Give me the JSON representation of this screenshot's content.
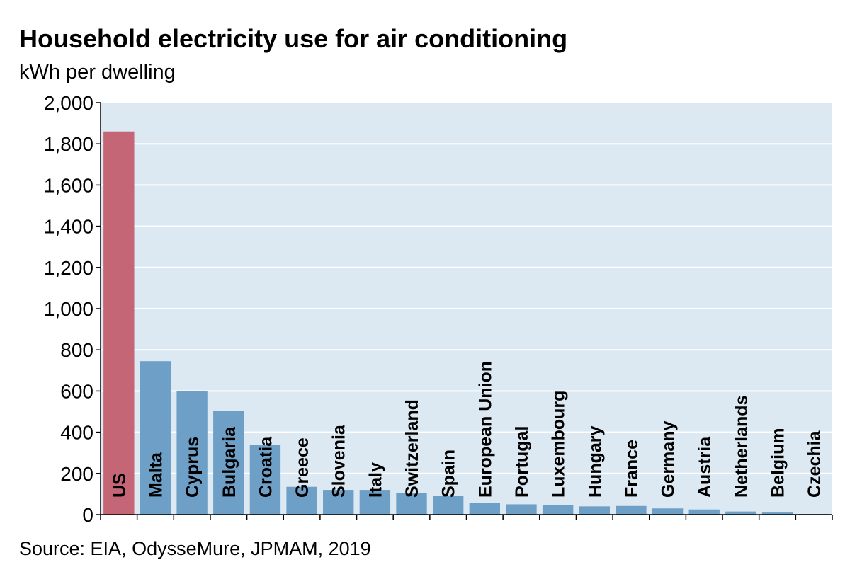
{
  "header": {
    "title": "Household electricity use for air conditioning",
    "subtitle": "kWh per dwelling"
  },
  "footer": {
    "source": "Source: EIA, OdysseMure, JPMAM, 2019"
  },
  "colors": {
    "plot_background": "#dce9f2",
    "gridline": "#ffffff",
    "us_bar": "#c46676",
    "other_bar": "#6d9fc7",
    "axis": "#000000"
  },
  "chart_data": {
    "type": "bar",
    "title": "Household electricity use for air conditioning",
    "ylabel": "kWh per dwelling",
    "xlabel": "",
    "ylim": [
      0,
      2000
    ],
    "yticks": [
      0,
      200,
      400,
      600,
      800,
      1000,
      1200,
      1400,
      1600,
      1800,
      2000
    ],
    "ytick_labels": [
      "0",
      "200",
      "400",
      "600",
      "800",
      "1,000",
      "1,200",
      "1,400",
      "1,600",
      "1,800",
      "2,000"
    ],
    "grid": true,
    "categories": [
      "US",
      "Malta",
      "Cyprus",
      "Bulgaria",
      "Croatia",
      "Greece",
      "Slovenia",
      "Italy",
      "Switzerland",
      "Spain",
      "European Union",
      "Portugal",
      "Luxembourg",
      "Hungary",
      "France",
      "Germany",
      "Austria",
      "Netherlands",
      "Belgium",
      "Czechia"
    ],
    "values": [
      1860,
      745,
      600,
      505,
      340,
      135,
      120,
      120,
      105,
      90,
      55,
      50,
      48,
      40,
      42,
      30,
      25,
      15,
      10,
      3
    ],
    "highlight_category": "US"
  }
}
